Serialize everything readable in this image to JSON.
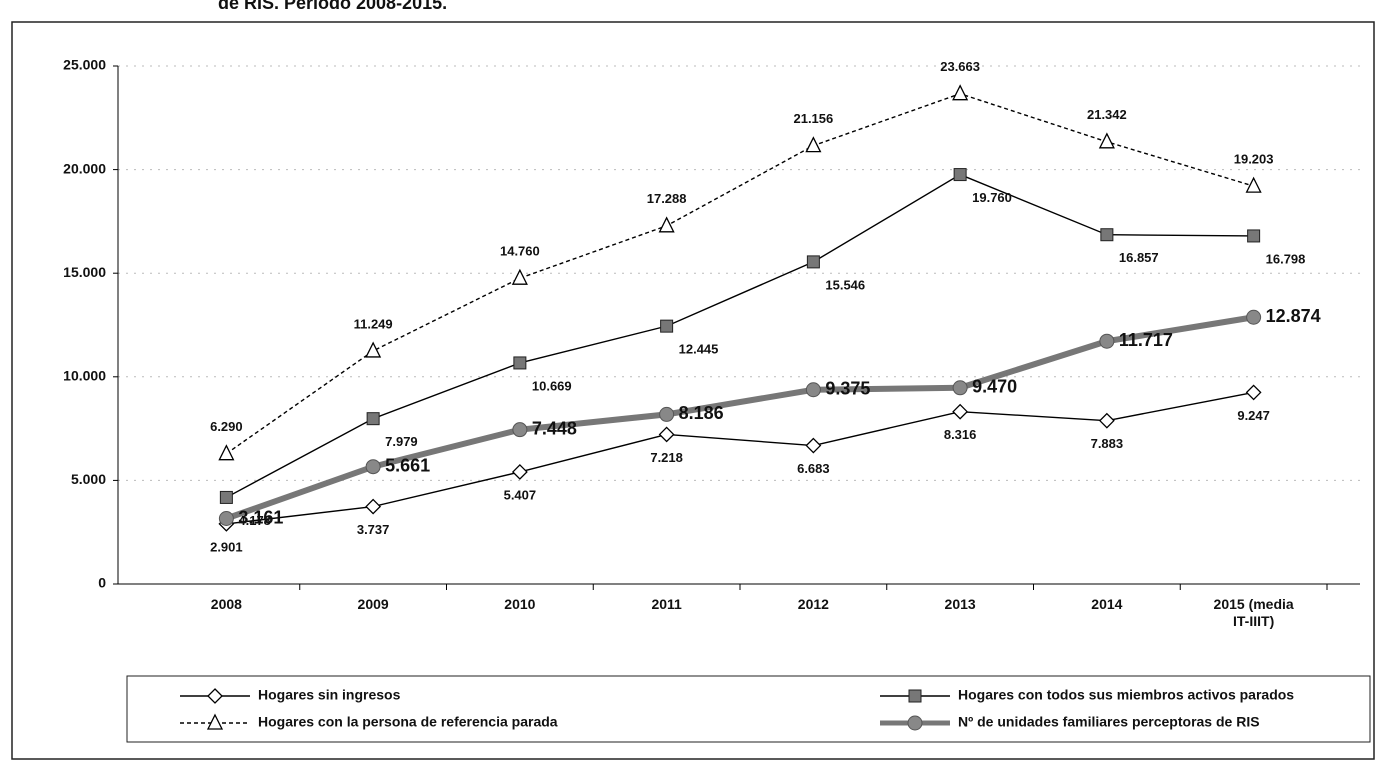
{
  "chart_data": {
    "type": "line",
    "title": "de RIS. Período 2008-2015.",
    "categories": [
      "2008",
      "2009",
      "2010",
      "2011",
      "2012",
      "2013",
      "2014",
      "2015 (media IT-IIIT)"
    ],
    "ylim": [
      0,
      25000
    ],
    "yticks": [
      0,
      {
        "value": 5000,
        "label": "5.000"
      },
      {
        "value": 10000,
        "label": "10.000"
      },
      {
        "value": 15000,
        "label": "15.000"
      },
      {
        "value": 20000,
        "label": "20.000"
      },
      {
        "value": 25000,
        "label": "25.000"
      }
    ],
    "grid": true,
    "series": [
      {
        "name": "Hogares sin ingresos",
        "color": "#000000",
        "marker": "diamond",
        "values": [
          2901,
          3737,
          5407,
          7218,
          6683,
          8316,
          7883,
          9247
        ],
        "value_labels": [
          "2.901",
          "3.737",
          "5.407",
          "7.218",
          "6.683",
          "8.316",
          "7.883",
          "9.247"
        ]
      },
      {
        "name": "Hogares con todos sus miembros activos parados",
        "color": "#000000",
        "marker": "square",
        "values": [
          4178,
          7979,
          10669,
          12445,
          15546,
          19760,
          16857,
          16798
        ],
        "value_labels": [
          "4.178",
          "7.979",
          "10.669",
          "12.445",
          "15.546",
          "19.760",
          "16.857",
          "16.798"
        ]
      },
      {
        "name": "Hogares con la persona de referencia parada",
        "color": "#000000",
        "marker": "triangle",
        "dashed": true,
        "values": [
          6290,
          11249,
          14760,
          17288,
          21156,
          23663,
          21342,
          19203
        ],
        "value_labels": [
          "6.290",
          "11.249",
          "14.760",
          "17.288",
          "21.156",
          "23.663",
          "21.342",
          "19.203"
        ]
      },
      {
        "name": "Nº de unidades familiares perceptoras de RIS",
        "color": "#777777",
        "marker": "circle",
        "thick": true,
        "values": [
          3161,
          5661,
          7448,
          8186,
          9375,
          9470,
          11717,
          12874
        ],
        "value_labels": [
          "3.161",
          "5.661",
          "7.448",
          "8.186",
          "9.375",
          "9.470",
          "11.717",
          "12.874"
        ]
      }
    ]
  }
}
